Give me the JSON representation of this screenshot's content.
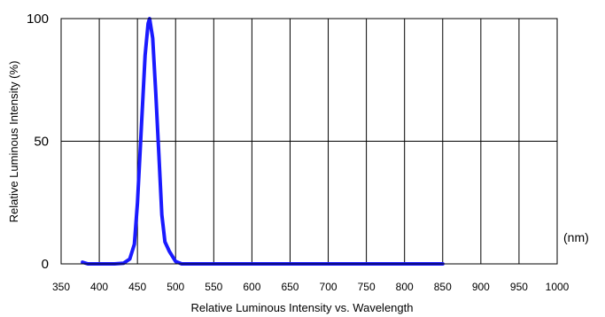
{
  "chart_data": {
    "type": "line",
    "title": "",
    "xlabel": "Relative Luminous Intensity vs. Wavelength",
    "ylabel": "Relative Luminous Intensity (%)",
    "x_unit": "(nm)",
    "xlim": [
      350,
      1000
    ],
    "ylim": [
      0,
      100
    ],
    "xticks": [
      350,
      400,
      450,
      500,
      550,
      600,
      650,
      700,
      750,
      800,
      850,
      900,
      950,
      1000
    ],
    "xtick_labels": [
      "350",
      "400",
      "450",
      "500",
      "550",
      "600",
      "650",
      "700",
      "750",
      "800",
      "850",
      "900",
      "950",
      "1000"
    ],
    "yticks": [
      0,
      50,
      100
    ],
    "ytick_labels": [
      "0",
      "50",
      "100"
    ],
    "grid": true,
    "legend": false,
    "series": [
      {
        "color": "#1a1aff",
        "x": [
          378,
          385,
          420,
          432,
          440,
          446,
          450,
          455,
          460,
          464,
          466,
          470,
          474,
          478,
          482,
          486,
          492,
          500,
          508,
          600,
          700,
          800,
          850
        ],
        "y": [
          0.7,
          0,
          0,
          0.3,
          2,
          8,
          25,
          55,
          85,
          98,
          100,
          92,
          70,
          45,
          20,
          9,
          5,
          1,
          0,
          0,
          0,
          0,
          0
        ]
      }
    ]
  }
}
